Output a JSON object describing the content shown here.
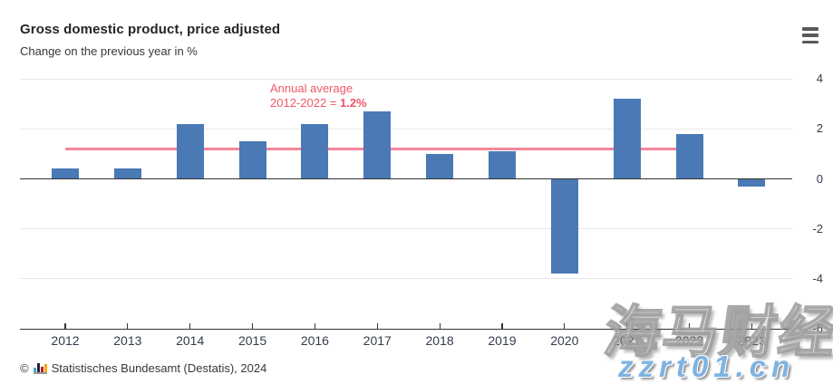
{
  "header": {
    "title": "Gross domestic product, price adjusted",
    "subtitle": "Change on the previous year in %"
  },
  "menu": {
    "icon": "hamburger-menu-icon"
  },
  "chart_data": {
    "type": "bar",
    "title": "Gross domestic product, price adjusted",
    "subtitle": "Change on the previous year in %",
    "categories": [
      "2012",
      "2013",
      "2014",
      "2015",
      "2016",
      "2017",
      "2018",
      "2019",
      "2020",
      "2021",
      "2022",
      "2023"
    ],
    "values": [
      0.4,
      0.4,
      2.2,
      1.5,
      2.2,
      2.7,
      1.0,
      1.1,
      -3.8,
      3.2,
      1.8,
      -0.3
    ],
    "bar_color": "#4a79b5",
    "yticks": [
      4,
      2,
      0,
      -2,
      -4,
      -6
    ],
    "ylim": [
      -6,
      4.4
    ],
    "xlabel": "",
    "ylabel": "",
    "grid": true,
    "legend": false,
    "axis_label_color": "#333c4d",
    "average_line": {
      "value": 1.2,
      "from_category": "2012",
      "to_category": "2022",
      "color": "#f5869a"
    },
    "annotation": {
      "line1": "Annual average",
      "line2_prefix": "2012-2022 = ",
      "value_bold": "1.2%",
      "color": "#ee5866"
    }
  },
  "footer": {
    "copyright_symbol": "©",
    "source_icon": "destatis-logo-icon",
    "source": "Statistisches Bundesamt (Destatis), 2024"
  },
  "watermark": {
    "chinese": "海马财经",
    "url": "zzrt01.cn"
  }
}
